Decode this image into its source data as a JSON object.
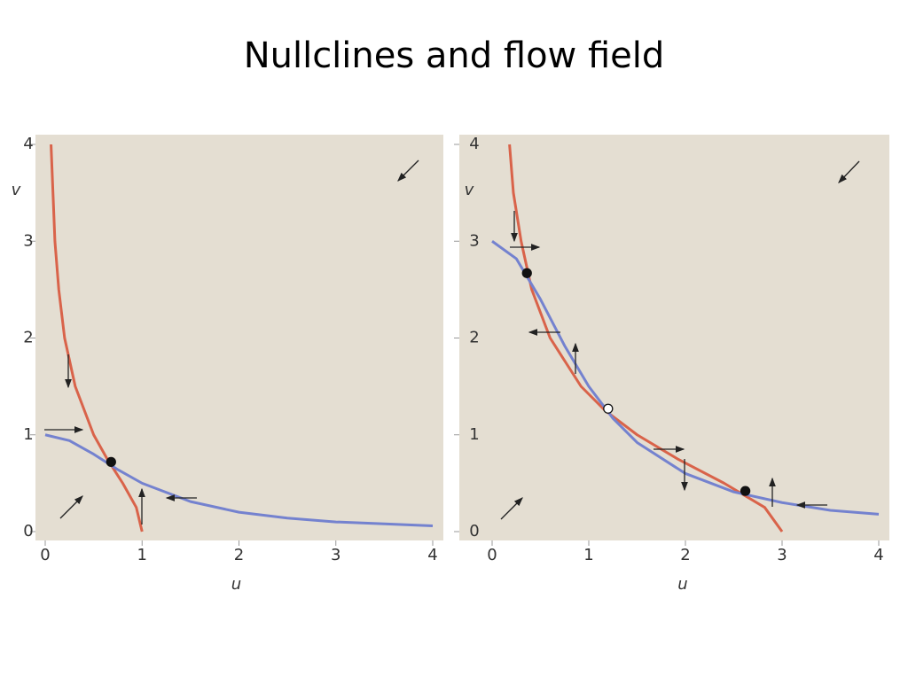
{
  "title": "Nullclines and flow field",
  "chart_data": [
    {
      "type": "line",
      "xlabel": "u",
      "ylabel": "v",
      "xlim": [
        0,
        4
      ],
      "ylim": [
        0,
        4
      ],
      "xticks": [
        0,
        1,
        2,
        3,
        4
      ],
      "yticks": [
        0,
        1,
        2,
        3,
        4
      ],
      "background": "#e4ded2",
      "series": [
        {
          "color": "#d9634a",
          "x": [
            1,
            0.94,
            0.8,
            0.64,
            0.5,
            0.31,
            0.2,
            0.14,
            0.1,
            0.08,
            0.06
          ],
          "values": [
            0,
            0.25,
            0.5,
            0.75,
            1,
            1.5,
            2,
            2.5,
            3,
            3.5,
            4
          ]
        },
        {
          "color": "#7482cf",
          "x": [
            0,
            0.25,
            0.5,
            0.75,
            1,
            1.5,
            2,
            2.5,
            3,
            3.5,
            4
          ],
          "values": [
            1,
            0.94,
            0.8,
            0.64,
            0.5,
            0.31,
            0.2,
            0.14,
            0.1,
            0.08,
            0.06
          ]
        }
      ],
      "points": [
        {
          "x": 0.68,
          "y": 0.72,
          "filled": true
        }
      ]
    },
    {
      "type": "line",
      "xlabel": "u",
      "ylabel": "v",
      "xlim": [
        0,
        4
      ],
      "ylim": [
        0,
        4
      ],
      "xticks": [
        0,
        1,
        2,
        3,
        4
      ],
      "yticks": [
        0,
        1,
        2,
        3,
        4
      ],
      "background": "#e4ded2",
      "series": [
        {
          "color": "#d9634a",
          "x": [
            3,
            2.82,
            2.4,
            1.92,
            1.5,
            1.17,
            0.92,
            0.6,
            0.41,
            0.3,
            0.22,
            0.18
          ],
          "values": [
            0,
            0.25,
            0.5,
            0.75,
            1,
            1.25,
            1.5,
            2,
            2.5,
            3,
            3.5,
            4
          ]
        },
        {
          "color": "#7482cf",
          "x": [
            0,
            0.25,
            0.5,
            0.75,
            1,
            1.25,
            1.5,
            2,
            2.5,
            3,
            3.5,
            4
          ],
          "values": [
            3,
            2.82,
            2.4,
            1.92,
            1.5,
            1.17,
            0.92,
            0.6,
            0.41,
            0.3,
            0.22,
            0.18
          ]
        }
      ],
      "points": [
        {
          "x": 0.36,
          "y": 2.67,
          "filled": true
        },
        {
          "x": 1.2,
          "y": 1.27,
          "filled": false
        },
        {
          "x": 2.62,
          "y": 0.42,
          "filled": true
        }
      ]
    }
  ]
}
